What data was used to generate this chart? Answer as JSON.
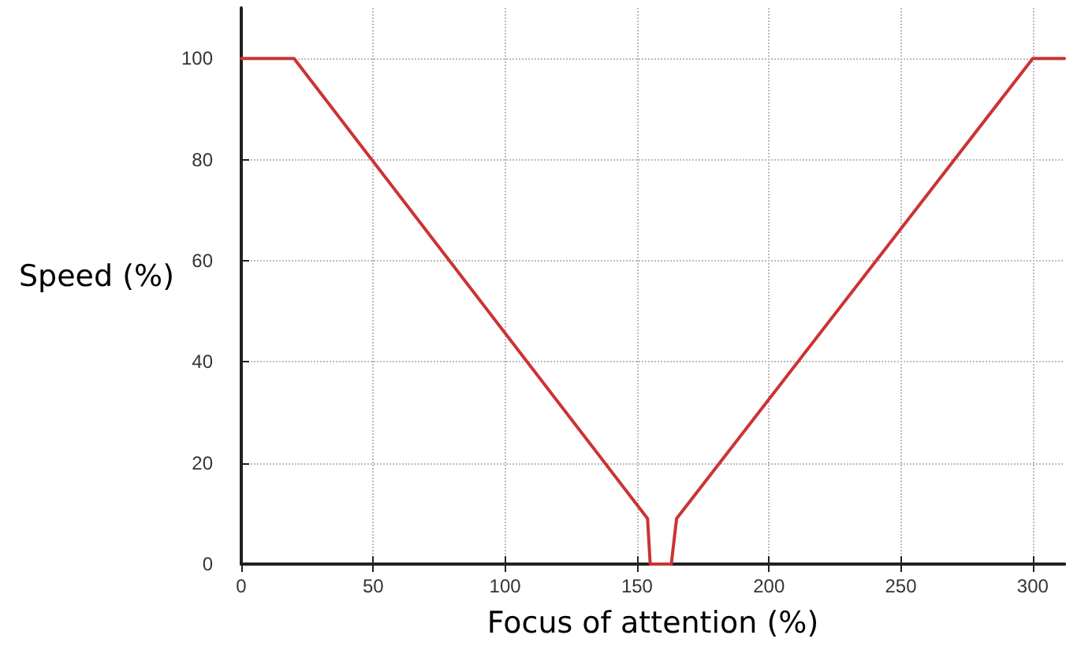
{
  "chart_data": {
    "type": "line",
    "xlabel": "Focus of attention (%)",
    "ylabel": "Speed (%)",
    "series": [
      {
        "color": "#cc3333",
        "x": [
          0,
          20,
          154,
          155,
          163,
          165,
          300,
          312
        ],
        "values": [
          100,
          100,
          9,
          0,
          0,
          9,
          100,
          100
        ]
      }
    ],
    "xlim": [
      0,
      312
    ],
    "xticks": [
      0,
      50,
      100,
      150,
      200,
      250,
      300
    ],
    "ylim": [
      0,
      110
    ],
    "yticks": [
      0,
      20,
      40,
      60,
      80,
      100
    ],
    "grid": true,
    "marker": "none",
    "line_style": "solid"
  }
}
